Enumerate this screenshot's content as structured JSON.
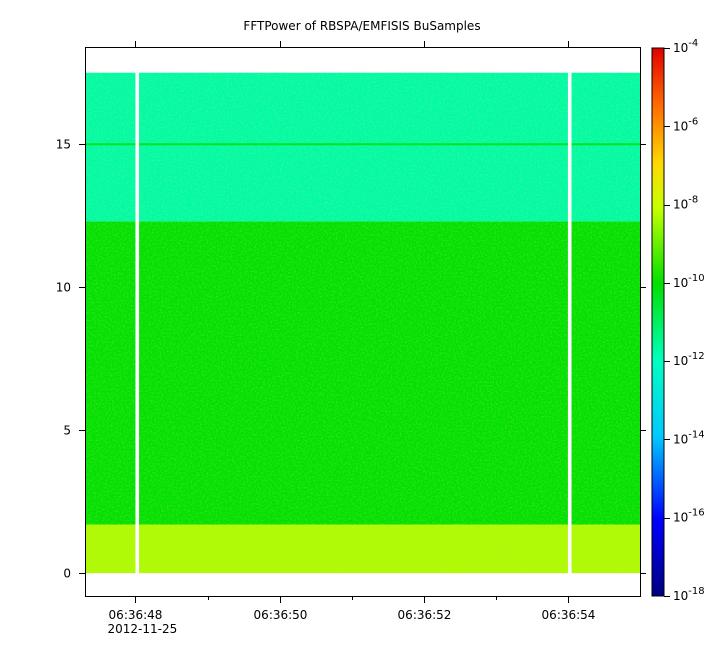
{
  "chart_data": {
    "type": "heatmap",
    "title": "FFTPower of RBSPA/EMFISIS  BuSamples",
    "xlabel": "",
    "ylabel": "",
    "x_axis": {
      "type": "time",
      "range": [
        "06:36:47.3",
        "06:36:55.0"
      ],
      "ticks": [
        {
          "value": "06:36:48",
          "label": "06:36:48",
          "sublabel": "2012-11-25"
        },
        {
          "value": "06:36:50",
          "label": "06:36:50",
          "sublabel": ""
        },
        {
          "value": "06:36:52",
          "label": "06:36:52",
          "sublabel": ""
        },
        {
          "value": "06:36:54",
          "label": "06:36:54",
          "sublabel": ""
        }
      ],
      "minor_ticks": [
        "06:36:49",
        "06:36:51",
        "06:36:53"
      ]
    },
    "y_axis": {
      "range": [
        -0.8,
        18.4
      ],
      "ticks": [
        0,
        5,
        10,
        15
      ]
    },
    "colorbar": {
      "scale": "log",
      "range": [
        1e-18,
        0.0001
      ],
      "tick_exponents": [
        -4,
        -6,
        -8,
        -10,
        -12,
        -14,
        -16,
        -18
      ],
      "tick_base": "10"
    },
    "data_gaps": [
      {
        "start": "06:36:48.0",
        "end": "06:36:48.05"
      },
      {
        "start": "06:36:54.0",
        "end": "06:36:54.05"
      }
    ],
    "spectrogram_extent": {
      "x": [
        "06:36:47.3",
        "06:36:55.0"
      ],
      "y": [
        0,
        17.5
      ]
    },
    "power_bands": [
      {
        "y_range": [
          0.0,
          1.7
        ],
        "log10_power": -8.3
      },
      {
        "y_range": [
          1.7,
          12.3
        ],
        "log10_power": -10.0
      },
      {
        "y_range": [
          12.3,
          17.5
        ],
        "log10_power": -11.7
      }
    ],
    "features": [
      {
        "type": "narrowband_line",
        "y": 15.0,
        "log10_power": -10.3
      }
    ]
  }
}
